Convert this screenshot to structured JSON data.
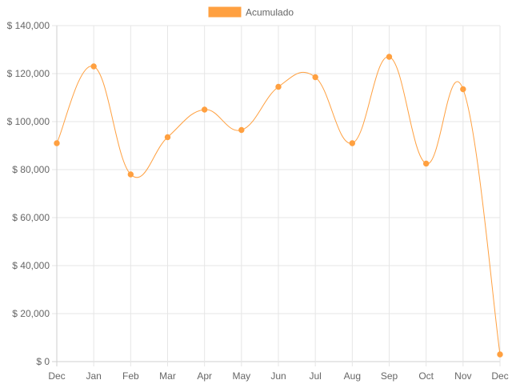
{
  "chart_data": {
    "type": "line",
    "categories": [
      "Dec",
      "Jan",
      "Feb",
      "Mar",
      "Apr",
      "May",
      "Jun",
      "Jul",
      "Aug",
      "Sep",
      "Oct",
      "Nov",
      "Dec"
    ],
    "series": [
      {
        "name": "Acumulado",
        "color": "#FFA040",
        "values": [
          91000,
          123000,
          78000,
          93500,
          105000,
          96500,
          114500,
          118500,
          91000,
          127000,
          82500,
          113500,
          3000
        ]
      }
    ],
    "ylim": [
      0,
      140000
    ],
    "yticks": [
      0,
      20000,
      40000,
      60000,
      80000,
      100000,
      120000,
      140000
    ],
    "ytick_labels": [
      "$ 0",
      "$ 20,000",
      "$ 40,000",
      "$ 60,000",
      "$ 80,000",
      "$ 100,000",
      "$ 120,000",
      "$ 140,000"
    ],
    "grid": true,
    "legend": "top-center",
    "curve": "smooth"
  }
}
